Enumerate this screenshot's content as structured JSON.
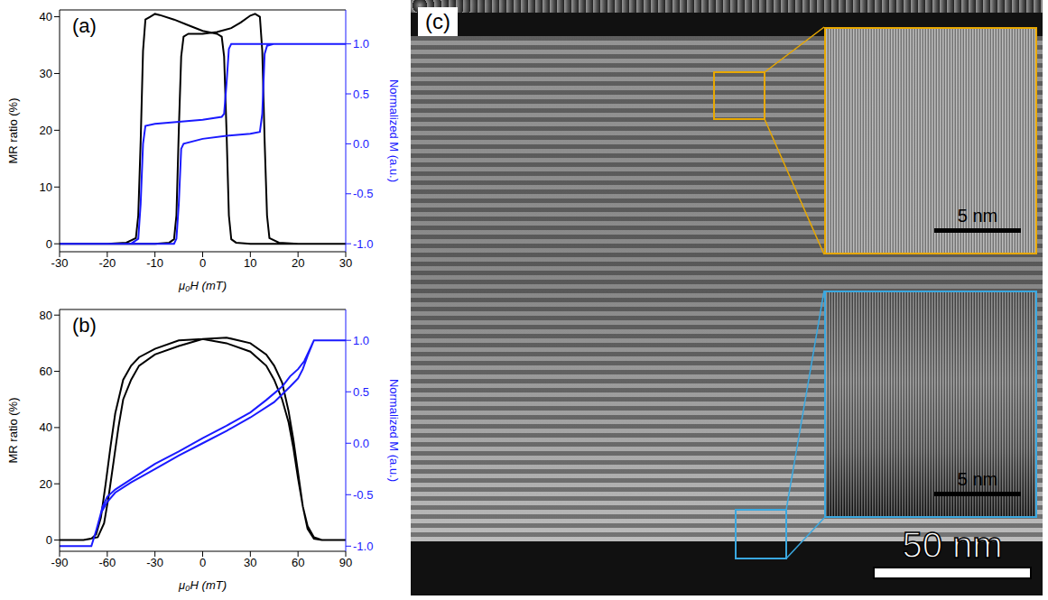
{
  "chart_data": [
    {
      "type": "line",
      "panel": "(a)",
      "x_label": "μ₀H (mT)",
      "y_label": "MR ratio (%)",
      "y2_label": "Normalized M (a.u.)",
      "xlim": [
        -30,
        30
      ],
      "xticks": [
        -30,
        -20,
        -10,
        0,
        10,
        20,
        30
      ],
      "ylim": [
        -1.4,
        41.2
      ],
      "yticks": [
        0,
        10,
        20,
        30,
        40
      ],
      "y2lim": [
        -1.08,
        1.34
      ],
      "y2ticks": [
        {
          "value": -1,
          "label": "-1.0"
        },
        {
          "value": -0.5,
          "label": "-0.5"
        },
        {
          "value": 0,
          "label": "0.0"
        },
        {
          "value": 0.5,
          "label": "0.5"
        },
        {
          "value": 1,
          "label": "1.0"
        }
      ],
      "grid": false,
      "series": [
        {
          "color": "#000000",
          "axis": "y",
          "x": [
            30,
            20,
            10,
            7,
            6,
            5.5,
            5,
            4.5,
            4,
            3,
            0,
            -3,
            -6,
            -9,
            -10,
            -11,
            -12,
            -12.5,
            -13,
            -13.5,
            -14,
            -16,
            -20,
            -30,
            -20,
            -10,
            -7,
            -6,
            -5.5,
            -5,
            -4.5,
            -4,
            -3,
            0,
            3,
            6,
            8,
            10,
            11,
            12,
            12.5,
            13,
            13.5,
            14,
            16,
            20,
            30
          ],
          "values": [
            0,
            0,
            0,
            0.2,
            0.8,
            5,
            20,
            33,
            36.5,
            37,
            37.5,
            38.5,
            39.5,
            40.3,
            40.5,
            40,
            39.5,
            34,
            18,
            5,
            1,
            0.2,
            0,
            0,
            0,
            0,
            0.2,
            0.8,
            5,
            20,
            33,
            36.5,
            37,
            37,
            37.3,
            38,
            39,
            40.2,
            40.5,
            40,
            34,
            18,
            5,
            1,
            0.2,
            0,
            0
          ]
        },
        {
          "color": "#1a1aff",
          "axis": "y2",
          "x": [
            30,
            10,
            6,
            5.5,
            5,
            4.5,
            4,
            0,
            -5,
            -10,
            -12,
            -12.5,
            -13,
            -13.5,
            -15,
            -30,
            -10,
            -6,
            -5.5,
            -5,
            -4.5,
            -4,
            0,
            5,
            10,
            12,
            12.5,
            13,
            13.5,
            15,
            30
          ],
          "values": [
            1,
            1,
            1,
            0.95,
            0.6,
            0.3,
            0.27,
            0.24,
            0.22,
            0.2,
            0.18,
            0,
            -0.6,
            -0.95,
            -1,
            -1,
            -1,
            -1,
            -0.95,
            -0.6,
            -0.05,
            0,
            0.05,
            0.08,
            0.1,
            0.12,
            0.3,
            0.9,
            0.98,
            1,
            1
          ]
        }
      ]
    },
    {
      "type": "line",
      "panel": "(b)",
      "x_label": "μ₀H (mT)",
      "y_label": "MR ratio (%)",
      "y2_label": "Normalized M (a.u.)",
      "xlim": [
        -90,
        90
      ],
      "xticks": [
        -90,
        -60,
        -30,
        0,
        30,
        60,
        90
      ],
      "ylim": [
        -4,
        82
      ],
      "yticks": [
        0,
        20,
        40,
        60,
        80
      ],
      "y2lim": [
        -1.05,
        1.3
      ],
      "y2ticks": [
        {
          "value": -1,
          "label": "-1.0"
        },
        {
          "value": -0.5,
          "label": "-0.5"
        },
        {
          "value": 0,
          "label": "0.0"
        },
        {
          "value": 0.5,
          "label": "0.5"
        },
        {
          "value": 1,
          "label": "1.0"
        }
      ],
      "grid": false,
      "series": [
        {
          "color": "#000000",
          "axis": "y",
          "x": [
            90,
            75,
            70,
            66,
            63,
            60,
            57,
            54,
            50,
            45,
            40,
            30,
            15,
            0,
            -15,
            -30,
            -40,
            -45,
            -50,
            -55,
            -58,
            -61,
            -64,
            -67,
            -70,
            -75,
            -90,
            -75,
            -66,
            -62,
            -59,
            -56,
            -53,
            -50,
            -45,
            -40,
            -30,
            -15,
            0,
            15,
            30,
            40,
            45,
            50,
            54,
            57,
            60,
            63,
            66,
            70,
            75,
            90
          ],
          "values": [
            0,
            0,
            1,
            5,
            12,
            22,
            33,
            42,
            50,
            57,
            62,
            67,
            70,
            71.5,
            71,
            68,
            65,
            62,
            57,
            45,
            33,
            20,
            8,
            2,
            0.5,
            0,
            0,
            0,
            1,
            6,
            16,
            28,
            40,
            50,
            57,
            62,
            66,
            69,
            71.5,
            72,
            70,
            66,
            62,
            56,
            46,
            36,
            24,
            12,
            4,
            0.5,
            0,
            0
          ]
        },
        {
          "color": "#1a1aff",
          "axis": "y2",
          "x": [
            90,
            70,
            67,
            64,
            60,
            55,
            50,
            40,
            30,
            15,
            0,
            -15,
            -30,
            -45,
            -55,
            -60,
            -63,
            -66,
            -70,
            -90,
            -70,
            -67,
            -64,
            -60,
            -55,
            -45,
            -30,
            -15,
            0,
            15,
            30,
            45,
            55,
            60,
            63,
            66,
            70,
            90
          ],
          "values": [
            1,
            1,
            0.9,
            0.8,
            0.72,
            0.65,
            0.55,
            0.42,
            0.3,
            0.17,
            0.05,
            -0.08,
            -0.2,
            -0.35,
            -0.45,
            -0.52,
            -0.62,
            -0.8,
            -1,
            -1,
            -1,
            -0.85,
            -0.68,
            -0.57,
            -0.48,
            -0.38,
            -0.25,
            -0.12,
            0,
            0.12,
            0.25,
            0.4,
            0.55,
            0.63,
            0.72,
            0.85,
            1,
            1
          ]
        }
      ]
    }
  ],
  "image": {
    "panel": "(c)",
    "insets": [
      {
        "scale_bar": "5 nm"
      },
      {
        "scale_bar": "5 nm"
      }
    ],
    "scale_bar": "50 nm"
  }
}
